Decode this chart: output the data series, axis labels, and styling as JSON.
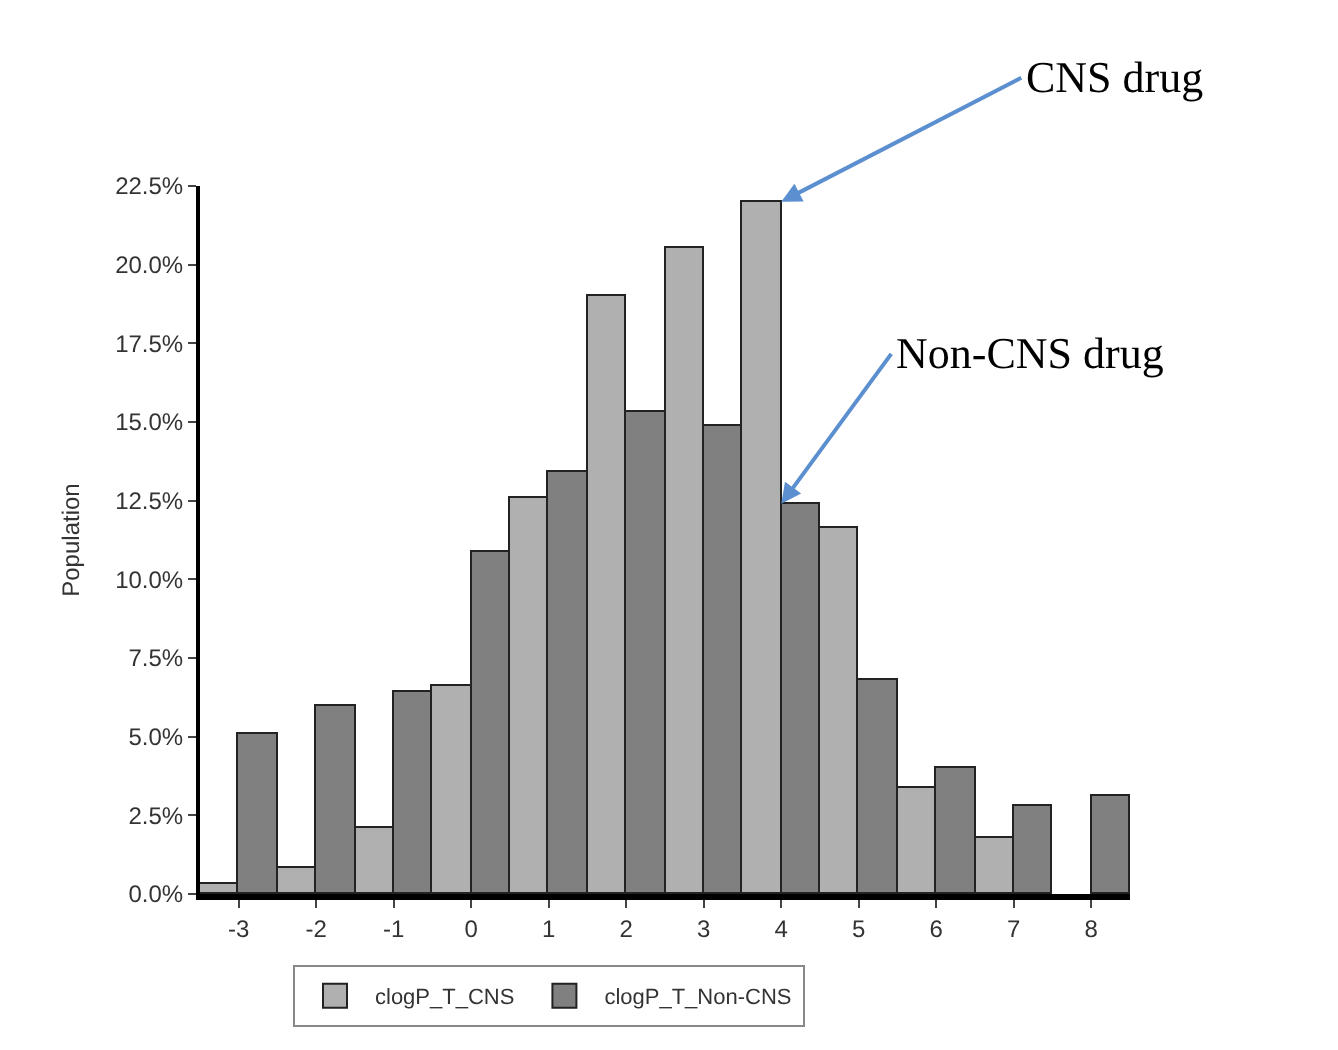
{
  "chart_data": {
    "type": "bar",
    "ylabel": "Population",
    "categories": [
      "-3",
      "-2",
      "-1",
      "0",
      "1",
      "2",
      "3",
      "4",
      "5",
      "6",
      "7",
      "8"
    ],
    "series": [
      {
        "name": "clogP_T_CNS",
        "color": "#b0b0b0",
        "values": [
          0.3,
          0.8,
          2.1,
          6.6,
          12.6,
          19.0,
          20.5,
          22.0,
          11.6,
          3.4,
          1.8,
          null
        ]
      },
      {
        "name": "clogP_T_Non-CNS",
        "color": "#808080",
        "values": [
          5.1,
          6.0,
          6.4,
          10.9,
          13.4,
          15.3,
          14.9,
          12.4,
          6.8,
          4.0,
          2.8,
          3.1
        ]
      }
    ],
    "ylim": [
      0,
      22.5
    ],
    "yticks": [
      {
        "value": 0,
        "label": "0.0%"
      },
      {
        "value": 2.5,
        "label": "2.5%"
      },
      {
        "value": 5,
        "label": "5.0%"
      },
      {
        "value": 7.5,
        "label": "7.5%"
      },
      {
        "value": 10,
        "label": "10.0%"
      },
      {
        "value": 12.5,
        "label": "12.5%"
      },
      {
        "value": 15,
        "label": "15.0%"
      },
      {
        "value": 17.5,
        "label": "17.5%"
      },
      {
        "value": 20,
        "label": "20.0%"
      },
      {
        "value": 22.5,
        "label": "22.5%"
      }
    ],
    "annotations": [
      {
        "text": "CNS drug",
        "x": "4",
        "y": 22.0
      },
      {
        "text": "Non-CNS drug",
        "x": "4",
        "y": 12.4
      }
    ],
    "legend": "bottom"
  }
}
